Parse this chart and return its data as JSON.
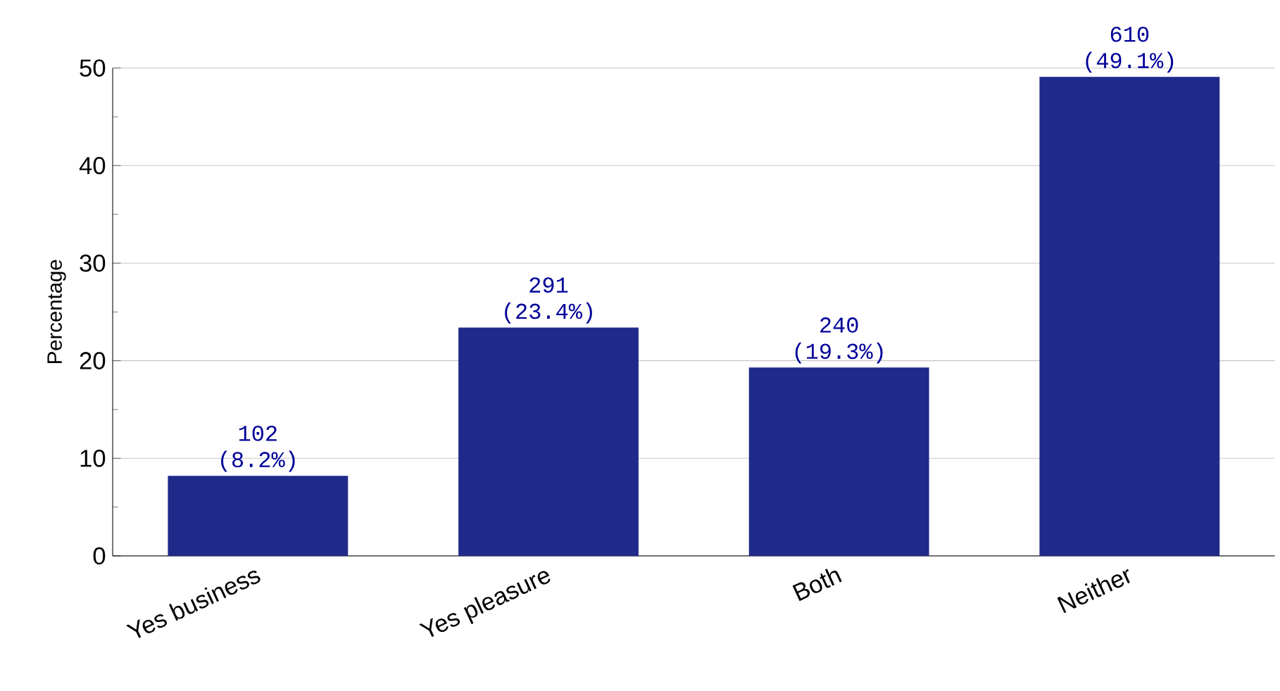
{
  "chart_data": {
    "type": "bar",
    "ylabel": "Percentage",
    "categories": [
      "Yes business",
      "Yes pleasure",
      "Both",
      "Neither"
    ],
    "values": [
      8.2,
      23.4,
      19.3,
      49.1
    ],
    "value_labels": [
      "102 (8.2%)",
      "291 (23.4%)",
      "240 (19.3%)",
      "610 (49.1%)"
    ],
    "color": "#1f2a8a",
    "ylim": [
      0,
      50
    ],
    "yticks": [
      0,
      10,
      20,
      30,
      40,
      50
    ],
    "grid": "y"
  }
}
